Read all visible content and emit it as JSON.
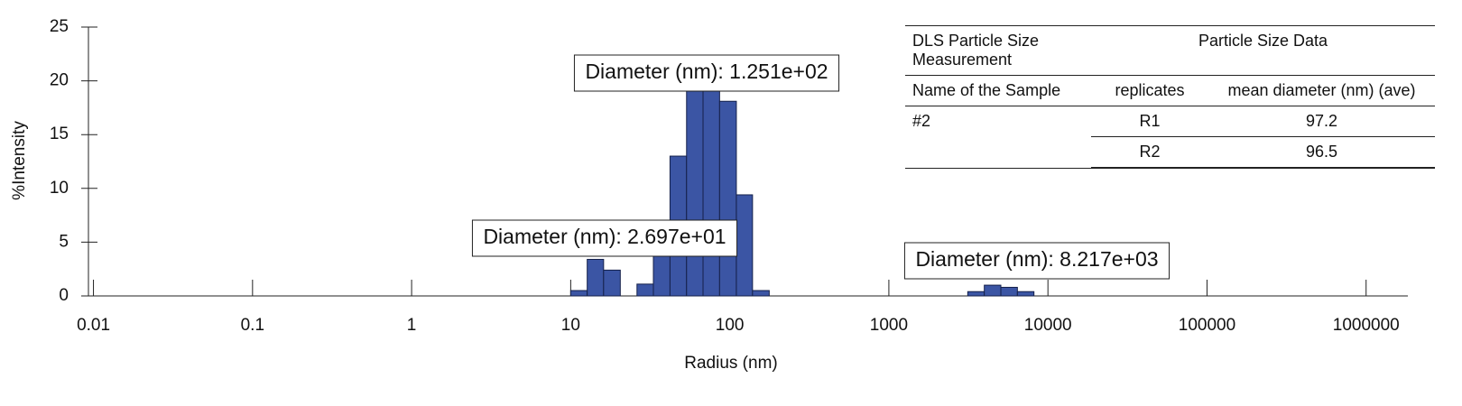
{
  "chart_data": {
    "type": "histogram",
    "xlabel": "Radius (nm)",
    "ylabel": "%Intensity",
    "log_x": true,
    "bins": [
      10,
      12.7,
      16.1,
      20.5,
      26.1,
      33.1,
      42.1,
      53.5,
      67.9,
      86.3,
      110,
      139,
      177,
      225,
      286,
      363,
      461,
      586,
      745,
      946,
      1202,
      1528,
      1941,
      2466,
      3133,
      3981,
      5058,
      6427,
      8166
    ],
    "values": [
      0.5,
      3.4,
      2.4,
      0,
      1.1,
      5.5,
      13.0,
      20.5,
      20.0,
      18.1,
      9.4,
      0.5,
      0,
      0,
      0,
      0,
      0,
      0,
      0,
      0,
      0,
      0,
      0,
      0,
      0.4,
      1.0,
      0.8,
      0.4
    ],
    "color": "#3b55a4",
    "xlim": [
      0.0093,
      1830000
    ],
    "xticks": [
      0.01,
      0.1,
      1,
      10,
      100,
      1000,
      10000,
      100000,
      1000000
    ],
    "ylim": [
      0,
      25
    ],
    "yticks": [
      0,
      5,
      10,
      15,
      20,
      25
    ],
    "annotations": [
      "Diameter (nm): 1.251e+02",
      "Diameter (nm): 2.697e+01",
      "Diameter (nm): 8.217e+03"
    ]
  },
  "table": {
    "title": "DLS Particle Size Measurement",
    "group_header": "Particle Size Data",
    "columns": [
      "Name of the Sample",
      "replicates",
      "mean diameter (nm) (ave)"
    ],
    "sample": "#2",
    "replicates": [
      {
        "name": "R1",
        "value": 97.2
      },
      {
        "name": "R2",
        "value": 96.5
      }
    ]
  }
}
